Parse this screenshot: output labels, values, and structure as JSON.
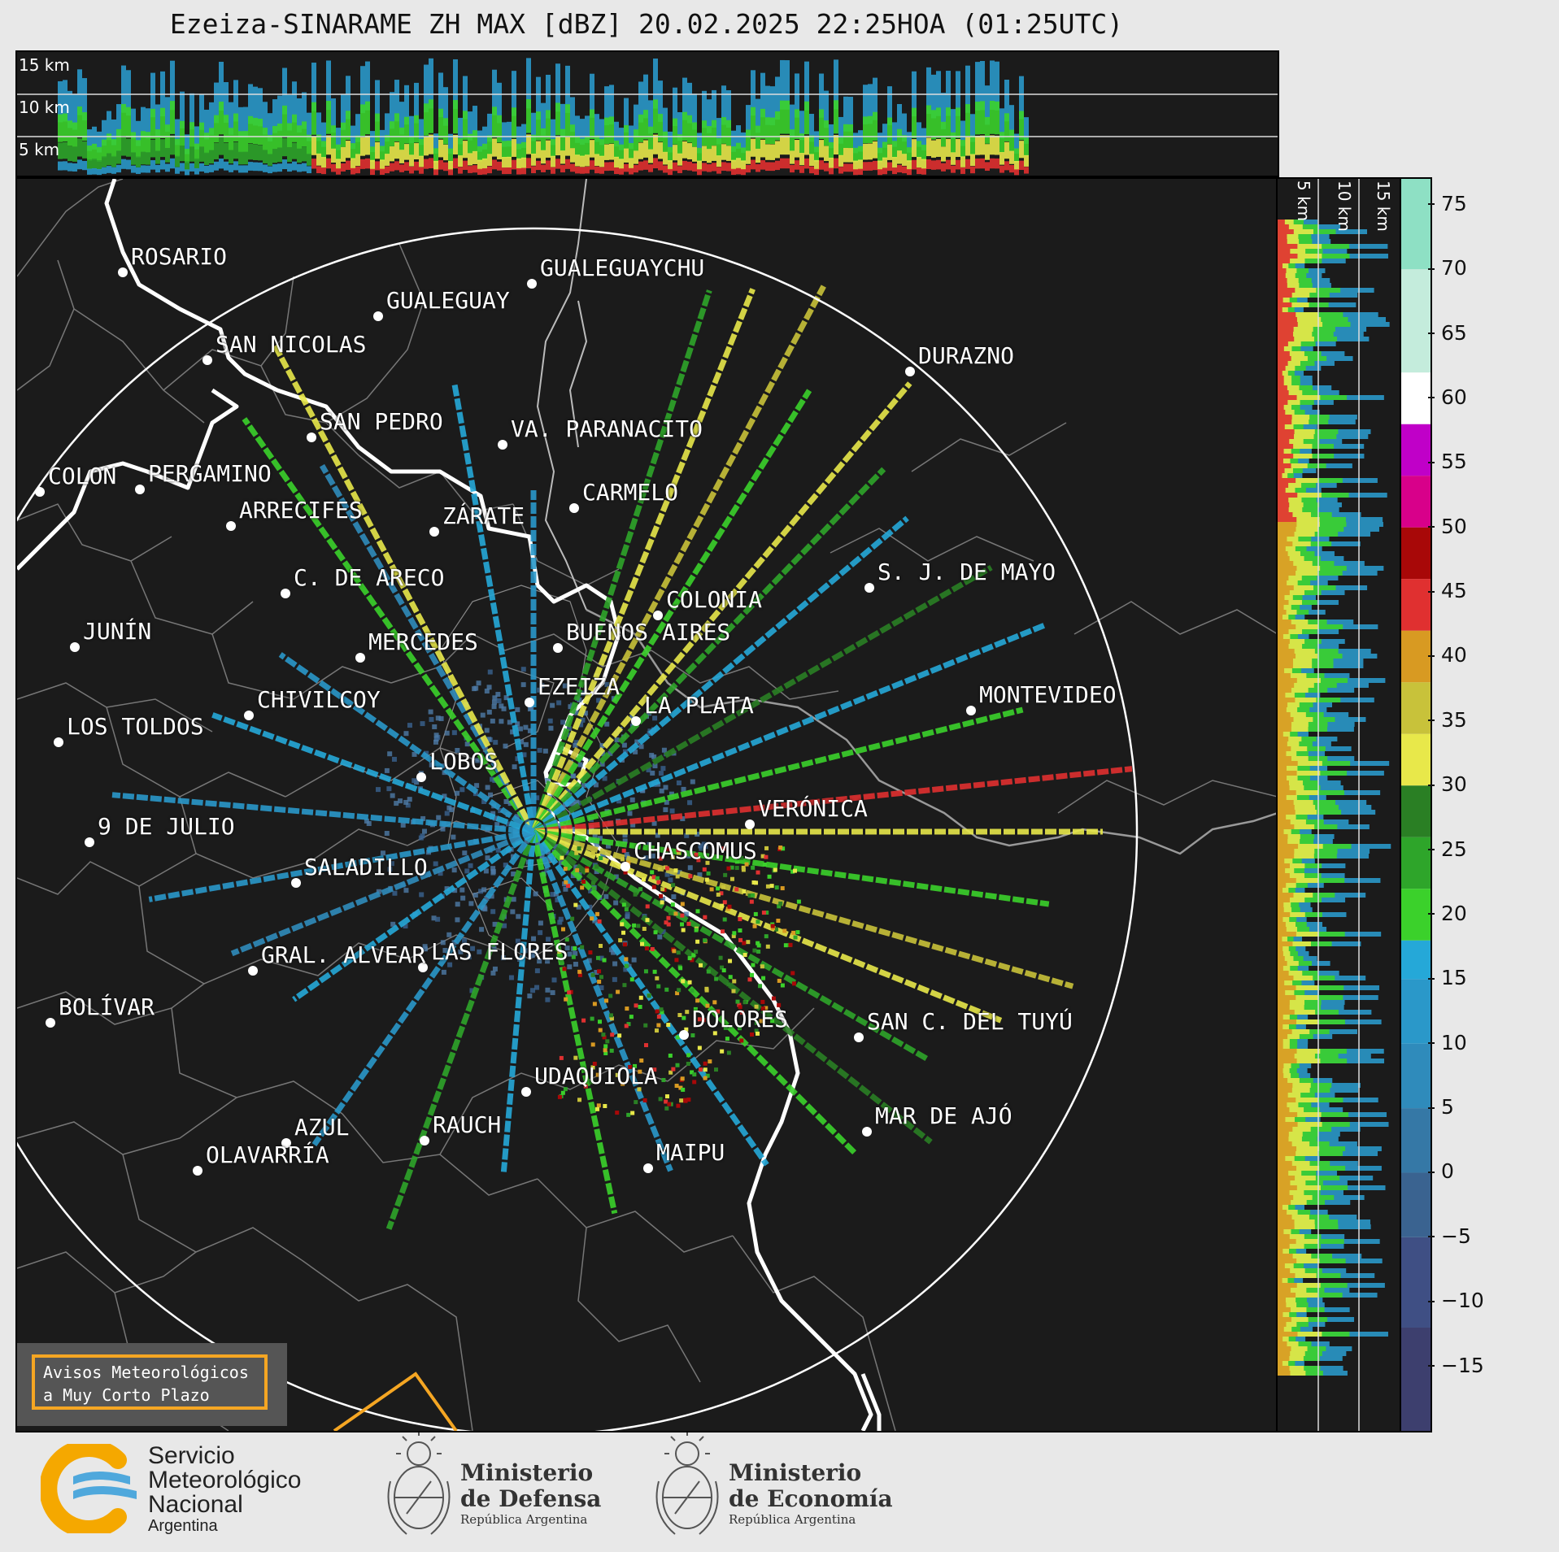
{
  "title": "Ezeiza-SINARAME ZH MAX [dBZ] 20.02.2025 22:25HOA (01:25UTC)",
  "top_strip": {
    "altitude_labels": [
      "15 km",
      "10 km",
      "5 km"
    ]
  },
  "side_strip": {
    "altitude_labels": [
      "5 km",
      "10 km",
      "15 km"
    ]
  },
  "colorbar": {
    "unit": "dBZ",
    "ticks": [
      "75",
      "70",
      "65",
      "60",
      "55",
      "50",
      "45",
      "40",
      "35",
      "30",
      "25",
      "20",
      "15",
      "10",
      "5",
      "0",
      "−5",
      "−10",
      "−15"
    ],
    "range": [
      -20,
      77
    ],
    "stops": [
      {
        "from": -20,
        "color": "#3d3f6e"
      },
      {
        "from": -12,
        "color": "#3f4f84"
      },
      {
        "from": -5,
        "color": "#3a6390"
      },
      {
        "from": 0,
        "color": "#3578a6"
      },
      {
        "from": 5,
        "color": "#2f8bbb"
      },
      {
        "from": 10,
        "color": "#2a98c9"
      },
      {
        "from": 15,
        "color": "#25a8d8"
      },
      {
        "from": 18,
        "color": "#3bd12b"
      },
      {
        "from": 22,
        "color": "#2ea52a"
      },
      {
        "from": 26,
        "color": "#2a7f24"
      },
      {
        "from": 30,
        "color": "#e8e84a"
      },
      {
        "from": 34,
        "color": "#c8c23a"
      },
      {
        "from": 38,
        "color": "#d89a22"
      },
      {
        "from": 42,
        "color": "#e03030"
      },
      {
        "from": 46,
        "color": "#a80808"
      },
      {
        "from": 50,
        "color": "#d8008a"
      },
      {
        "from": 54,
        "color": "#c000c8"
      },
      {
        "from": 58,
        "color": "#ffffff"
      },
      {
        "from": 62,
        "color": "#c4ecdc"
      },
      {
        "from": 70,
        "color": "#8ee0c4"
      }
    ]
  },
  "cities": [
    {
      "name": "ROSARIO",
      "kind": "city"
    },
    {
      "name": "GUALEGUAYCHU",
      "kind": "city"
    },
    {
      "name": "GUALEGUAY",
      "kind": "city"
    },
    {
      "name": "SAN NICOLAS",
      "kind": "city"
    },
    {
      "name": "DURAZNO",
      "kind": "city"
    },
    {
      "name": "SAN PEDRO",
      "kind": "city"
    },
    {
      "name": "VA. PARANACITO",
      "kind": "city"
    },
    {
      "name": "COLON",
      "kind": "city"
    },
    {
      "name": "PERGAMINO",
      "kind": "city"
    },
    {
      "name": "CARMELO",
      "kind": "city"
    },
    {
      "name": "ARRECIFES",
      "kind": "city"
    },
    {
      "name": "ZÁRATE",
      "kind": "city"
    },
    {
      "name": "S. J. DE MAYO",
      "kind": "city"
    },
    {
      "name": "C. DE ARECO",
      "kind": "city"
    },
    {
      "name": "COLONIA",
      "kind": "city"
    },
    {
      "name": "JUNÍN",
      "kind": "city"
    },
    {
      "name": "MERCEDES",
      "kind": "city"
    },
    {
      "name": "BUENOS AIRES",
      "kind": "city"
    },
    {
      "name": "EZEIZA",
      "kind": "radar"
    },
    {
      "name": "MONTEVIDEO",
      "kind": "city"
    },
    {
      "name": "CHIVILCOY",
      "kind": "city"
    },
    {
      "name": "LA PLATA",
      "kind": "city"
    },
    {
      "name": "LOS TOLDOS",
      "kind": "city"
    },
    {
      "name": "LOBOS",
      "kind": "city"
    },
    {
      "name": "VERÓNICA",
      "kind": "city"
    },
    {
      "name": "9 DE JULIO",
      "kind": "city"
    },
    {
      "name": "CHASCOMUS",
      "kind": "city"
    },
    {
      "name": "SALADILLO",
      "kind": "city"
    },
    {
      "name": "GRAL. ALVEAR",
      "kind": "city"
    },
    {
      "name": "LAS FLORES",
      "kind": "city"
    },
    {
      "name": "BOLÍVAR",
      "kind": "city"
    },
    {
      "name": "DOLORES",
      "kind": "city"
    },
    {
      "name": "SAN C. DEL TUYÚ",
      "kind": "city"
    },
    {
      "name": "UDAQUIOLA",
      "kind": "city"
    },
    {
      "name": "MAR DE AJÓ",
      "kind": "city"
    },
    {
      "name": "AZUL",
      "kind": "city"
    },
    {
      "name": "RAUCH",
      "kind": "city"
    },
    {
      "name": "OLAVARRÍA",
      "kind": "city"
    },
    {
      "name": "MAIPU",
      "kind": "city"
    }
  ],
  "avisos": {
    "line1": "Avisos Meteorológicos",
    "line2": "a Muy Corto Plazo"
  },
  "footer": {
    "smn": {
      "line1": "Servicio",
      "line2": "Meteorológico",
      "line3": "Nacional",
      "line4": "Argentina"
    },
    "defensa": {
      "line1": "Ministerio",
      "line2": "de Defensa",
      "sub": "República Argentina"
    },
    "economia": {
      "line1": "Ministerio",
      "line2": "de Economía",
      "sub": "República Argentina"
    }
  },
  "icons": {
    "smn_logo": "smn-logo-icon",
    "coat_of_arms": "coat-of-arms-icon"
  }
}
